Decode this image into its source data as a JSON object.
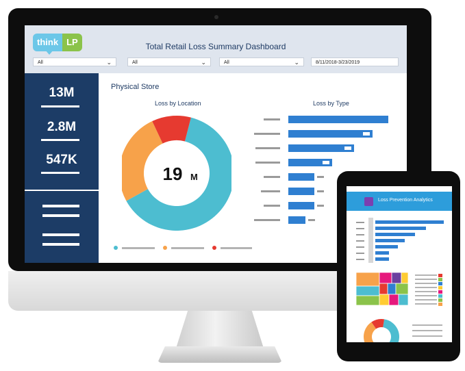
{
  "dashboard": {
    "logo": {
      "part1": "think",
      "part2": "LP"
    },
    "title": "Total Retail Loss Summary Dashboard",
    "filters": [
      {
        "value": "All"
      },
      {
        "value": "All"
      },
      {
        "value": "All"
      },
      {
        "value": "8/11/2018-3/23/2019"
      }
    ],
    "stats": [
      {
        "value": "13M"
      },
      {
        "value": "2.8M"
      },
      {
        "value": "547K"
      }
    ],
    "section_title": "Physical Store",
    "loss_by_location": {
      "title": "Loss by Location",
      "center_value": "19",
      "center_unit": "M"
    },
    "loss_by_type": {
      "title": "Loss by Type"
    }
  },
  "chart_data": [
    {
      "type": "pie",
      "title": "Loss by Location",
      "slices": [
        {
          "share": 0.63,
          "color": "#4dbdd0"
        },
        {
          "share": 0.26,
          "color": "#f7a24a"
        },
        {
          "share": 0.11,
          "color": "#e63a30"
        }
      ]
    },
    {
      "type": "bar",
      "orientation": "horizontal",
      "title": "Loss by Type",
      "values": [
        100,
        84,
        66,
        44,
        26,
        26,
        26,
        17
      ],
      "color": "#2f7fd1"
    }
  ],
  "tablet": {
    "title": "Loss Prevention Analytics",
    "bar_values": [
      100,
      74,
      58,
      43,
      33,
      20,
      20
    ],
    "treemap_colors": [
      "#f7a24a",
      "#e6197d",
      "#4dbdd0",
      "#8bc34a",
      "#6b3fa0",
      "#ffcc33",
      "#e63a30",
      "#2f7fd1"
    ],
    "legend_colors": [
      "#e63a30",
      "#8bc34a",
      "#2f7fd1",
      "#ffcc33",
      "#e6197d",
      "#4dbdd0",
      "#8bc34a",
      "#f7a24a"
    ],
    "donut_slices": [
      {
        "share": 0.62,
        "color": "#4dbdd0"
      },
      {
        "share": 0.26,
        "color": "#f7a24a"
      },
      {
        "share": 0.12,
        "color": "#e63a30"
      }
    ]
  },
  "colors": {
    "navy": "#1c3c66",
    "header_bg": "#dfe5ee",
    "accent_blue": "#2f7fd1",
    "teal": "#4dbdd0",
    "orange": "#f7a24a",
    "red": "#e63a30"
  }
}
